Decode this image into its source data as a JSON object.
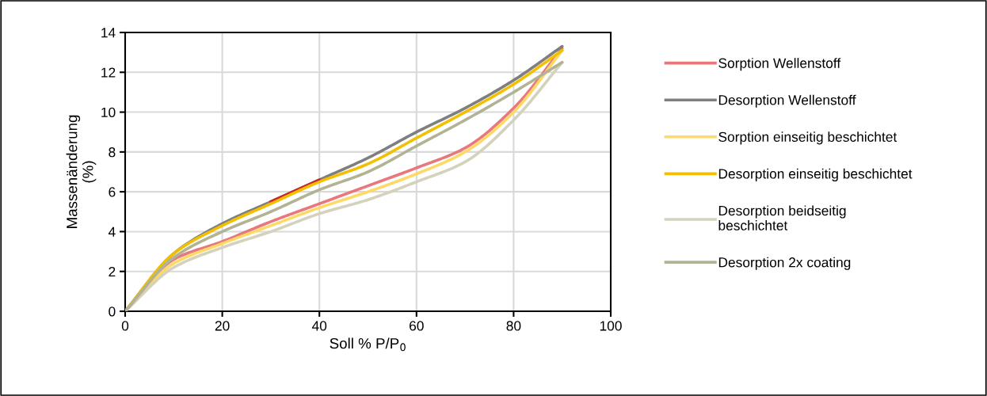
{
  "chart_data": {
    "type": "line",
    "xlabel": "Soll % P/P$_{0}$",
    "ylabel": "Massenänderung\n(%)",
    "x": [
      0,
      10,
      20,
      30,
      40,
      50,
      60,
      70,
      80,
      90
    ],
    "series": [
      {
        "name": "Sorption Wellenstoff",
        "color": "#e8787c",
        "values": [
          0,
          2.6,
          3.5,
          4.5,
          5.4,
          6.3,
          7.2,
          8.2,
          10.2,
          13.2
        ]
      },
      {
        "name": "Desorption Wellenstoff",
        "color": "#7f7f7f",
        "values": [
          0,
          2.9,
          4.4,
          5.5,
          6.6,
          7.7,
          9.0,
          10.2,
          11.6,
          13.3
        ]
      },
      {
        "color": "#d02428",
        "x": [
          30,
          40
        ],
        "values": [
          5.5,
          6.6
        ]
      },
      {
        "name": "Sorption einseitig beschichtet",
        "color": "#ffd966",
        "values": [
          0,
          2.4,
          3.4,
          4.3,
          5.2,
          6.0,
          6.9,
          8.0,
          10.0,
          13.1
        ]
      },
      {
        "name": "Desorption einseitig beschichtet",
        "color": "#f2c000",
        "values": [
          0,
          2.9,
          4.3,
          5.4,
          6.5,
          7.4,
          8.7,
          10.0,
          11.4,
          13.1
        ]
      },
      {
        "name": "Desorption beidseitig\nbeschichtet",
        "color": "#d4d2bc",
        "values": [
          0,
          2.2,
          3.2,
          4.0,
          4.9,
          5.6,
          6.5,
          7.5,
          9.6,
          12.5
        ]
      },
      {
        "name": "Desorption 2x coating",
        "color": "#b2b295",
        "values": [
          0,
          2.7,
          4.0,
          5.0,
          6.1,
          7.0,
          8.3,
          9.6,
          11.0,
          12.5
        ]
      }
    ],
    "xlim": [
      0,
      100
    ],
    "xticks": [
      0,
      20,
      40,
      60,
      80,
      100
    ],
    "ylim": [
      0,
      14
    ],
    "yticks": [
      0,
      2,
      4,
      6,
      8,
      10,
      12,
      14
    ],
    "grid": true,
    "legend": "right",
    "marker": "none",
    "line_style": "solid"
  }
}
